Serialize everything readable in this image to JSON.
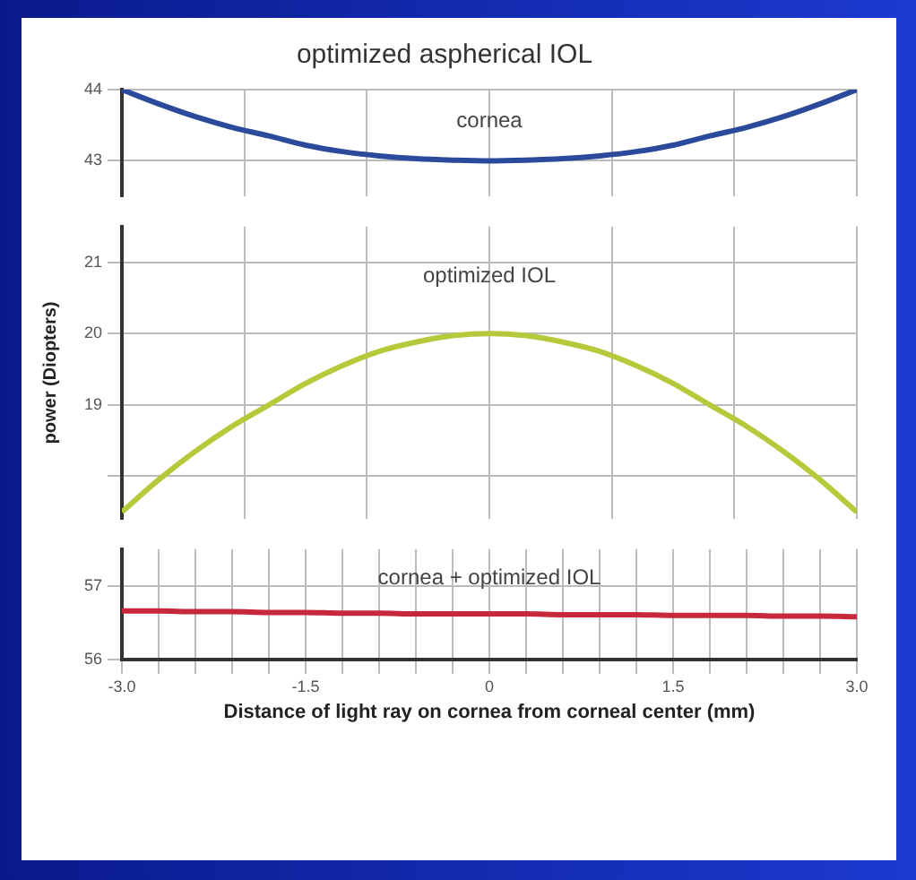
{
  "chart_data": [
    {
      "type": "line",
      "title": "optimized aspherical IOL",
      "tick_labels": "y",
      "x": [
        -3,
        -2.7,
        -2.4,
        -2.1,
        -1.8,
        -1.5,
        -1.2,
        -0.9,
        -0.6,
        -0.3,
        0,
        0.3,
        0.6,
        0.9,
        1.2,
        1.5,
        1.8,
        2.1,
        2.4,
        2.7,
        3
      ],
      "series": [
        {
          "name": "cornea",
          "color": "#2b4a9c",
          "values": [
            44,
            43.8,
            43.62,
            43.47,
            43.35,
            43.22,
            43.13,
            43.07,
            43.03,
            43.01,
            43,
            43.01,
            43.03,
            43.07,
            43.13,
            43.22,
            43.35,
            43.47,
            43.62,
            43.8,
            44
          ]
        }
      ],
      "xlim": [
        -3,
        3
      ],
      "ylim": [
        42.5,
        44
      ],
      "yticks": [
        43,
        44
      ],
      "grid": true,
      "marker": "none",
      "line_style": "solid"
    },
    {
      "type": "line",
      "ylabel": "power (Diopters)",
      "tick_labels": "y",
      "x": [
        -3,
        -2.7,
        -2.4,
        -2.1,
        -1.8,
        -1.5,
        -1.2,
        -0.9,
        -0.6,
        -0.3,
        0,
        0.3,
        0.6,
        0.9,
        1.2,
        1.5,
        1.8,
        2.1,
        2.4,
        2.7,
        3
      ],
      "series": [
        {
          "name": "optimized IOL",
          "color": "#b5c93a",
          "values": [
            17.5,
            17.95,
            18.35,
            18.7,
            19,
            19.3,
            19.55,
            19.75,
            19.88,
            19.97,
            20,
            19.97,
            19.88,
            19.75,
            19.55,
            19.3,
            19,
            18.7,
            18.35,
            17.95,
            17.5
          ]
        }
      ],
      "xlim": [
        -3,
        3
      ],
      "ylim": [
        17.4,
        21.5
      ],
      "yticks": [
        {
          "value": 18,
          "label": null
        },
        19,
        20,
        21
      ],
      "grid": true,
      "marker": "none",
      "line_style": "solid"
    },
    {
      "type": "line",
      "xlabel": "Distance of light ray on cornea from corneal center (mm)",
      "x": [
        -3,
        -2.7,
        -2.4,
        -2.1,
        -1.8,
        -1.5,
        -1.2,
        -0.9,
        -0.6,
        -0.3,
        0,
        0.3,
        0.6,
        0.9,
        1.2,
        1.5,
        1.8,
        2.1,
        2.4,
        2.7,
        3
      ],
      "series": [
        {
          "name": "cornea + optimized IOL",
          "color": "#c8283c",
          "values": [
            56.66,
            56.66,
            56.65,
            56.65,
            56.64,
            56.64,
            56.63,
            56.63,
            56.62,
            56.62,
            56.62,
            56.62,
            56.61,
            56.61,
            56.61,
            56.6,
            56.6,
            56.6,
            56.59,
            56.59,
            56.58
          ]
        }
      ],
      "xlim": [
        -3,
        3
      ],
      "xticks": [
        {
          "value": -3,
          "label": "-3.0"
        },
        {
          "value": -2.7,
          "label": null
        },
        {
          "value": -2.4,
          "label": null
        },
        {
          "value": -2.1,
          "label": null
        },
        {
          "value": -1.8,
          "label": null
        },
        {
          "value": -1.5,
          "label": "-1.5"
        },
        {
          "value": -1.2,
          "label": null
        },
        {
          "value": -0.9,
          "label": null
        },
        {
          "value": -0.6,
          "label": null
        },
        {
          "value": -0.3,
          "label": null
        },
        0,
        {
          "value": 0.3,
          "label": null
        },
        {
          "value": 0.6,
          "label": null
        },
        {
          "value": 0.9,
          "label": null
        },
        {
          "value": 1.2,
          "label": null
        },
        1.5,
        {
          "value": 1.8,
          "label": null
        },
        {
          "value": 2.1,
          "label": null
        },
        {
          "value": 2.4,
          "label": null
        },
        {
          "value": 2.7,
          "label": null
        },
        {
          "value": 3,
          "label": "3.0"
        }
      ],
      "ylim": [
        56,
        57.5
      ],
      "yticks": [
        56,
        57
      ],
      "grid": true,
      "marker": "none",
      "line_style": "solid"
    }
  ]
}
